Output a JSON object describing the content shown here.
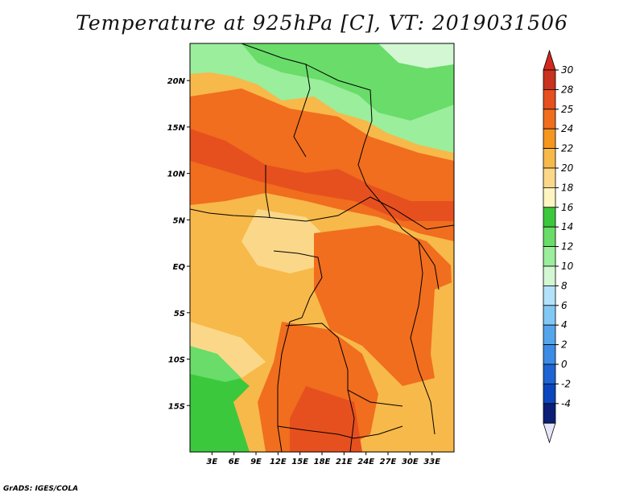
{
  "title": "Temperature at 925hPa [C], VT: 2019031506",
  "footer": "GrADS: IGES/COLA",
  "map": {
    "lon_range": [
      0,
      36
    ],
    "lat_range": [
      -20,
      24
    ],
    "x_ticks": [
      "3E",
      "6E",
      "9E",
      "12E",
      "15E",
      "18E",
      "21E",
      "24E",
      "27E",
      "30E",
      "33E"
    ],
    "y_ticks": [
      "20N",
      "15N",
      "10N",
      "5N",
      "EQ",
      "5S",
      "10S",
      "15S"
    ]
  },
  "colorbar": {
    "labels": [
      "30",
      "28",
      "25",
      "24",
      "22",
      "20",
      "18",
      "16",
      "14",
      "12",
      "10",
      "8",
      "6",
      "4",
      "2",
      "0",
      "-2",
      "-4"
    ],
    "colors": [
      "#c8321e",
      "#e6501e",
      "#f06e1e",
      "#f5961e",
      "#f7b94a",
      "#fbd889",
      "#fff5c1",
      "#3cc83c",
      "#69dc69",
      "#9bee9b",
      "#d2f7d2",
      "#b4e1fa",
      "#82c8f5",
      "#55a5ed",
      "#3c8ce6",
      "#1e64d2",
      "#0a46be",
      "#0a1e78"
    ],
    "top_triangle": "#d2281e",
    "bottom_triangle": "#e6e6fa"
  }
}
